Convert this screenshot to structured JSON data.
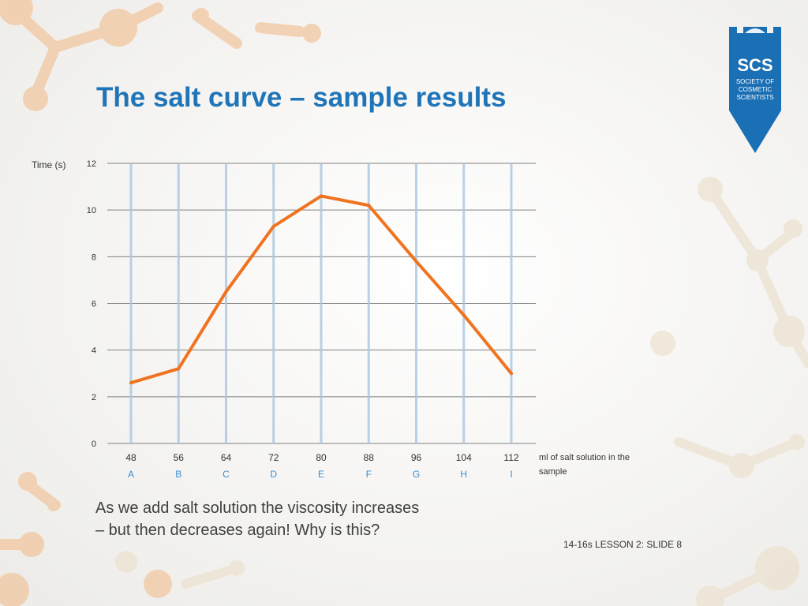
{
  "slide": {
    "title": "The salt curve – sample results",
    "caption_lines": [
      "As we add salt solution the viscosity increases",
      "– but then decreases again! Why is this?"
    ],
    "slide_number": "14-16s  LESSON 2: SLIDE 8"
  },
  "logo": {
    "abbr": "SCS",
    "lines": [
      "SOCIETY OF",
      "COSMETIC",
      "SCIENTISTS"
    ],
    "color": "#1a6fb5"
  },
  "colors": {
    "title": "#1f75b8",
    "series": "#f07320",
    "drop_lines": "#a9c6e0",
    "letters": "#3a8fd0",
    "gridlines": "#808080"
  },
  "chart_data": {
    "type": "line",
    "ylabel": "Time (s)",
    "xlabel": "ml of salt solution in the sample",
    "ylim": [
      0,
      12
    ],
    "yticks": [
      0,
      2,
      4,
      6,
      8,
      10,
      12
    ],
    "grid": true,
    "categories": [
      "48",
      "56",
      "64",
      "72",
      "80",
      "88",
      "96",
      "104",
      "112"
    ],
    "category_letters": [
      "A",
      "B",
      "C",
      "D",
      "E",
      "F",
      "G",
      "H",
      "I"
    ],
    "series": [
      {
        "values": [
          2.6,
          3.2,
          6.5,
          9.3,
          10.6,
          10.2,
          7.8,
          5.5,
          3.0
        ]
      }
    ]
  }
}
